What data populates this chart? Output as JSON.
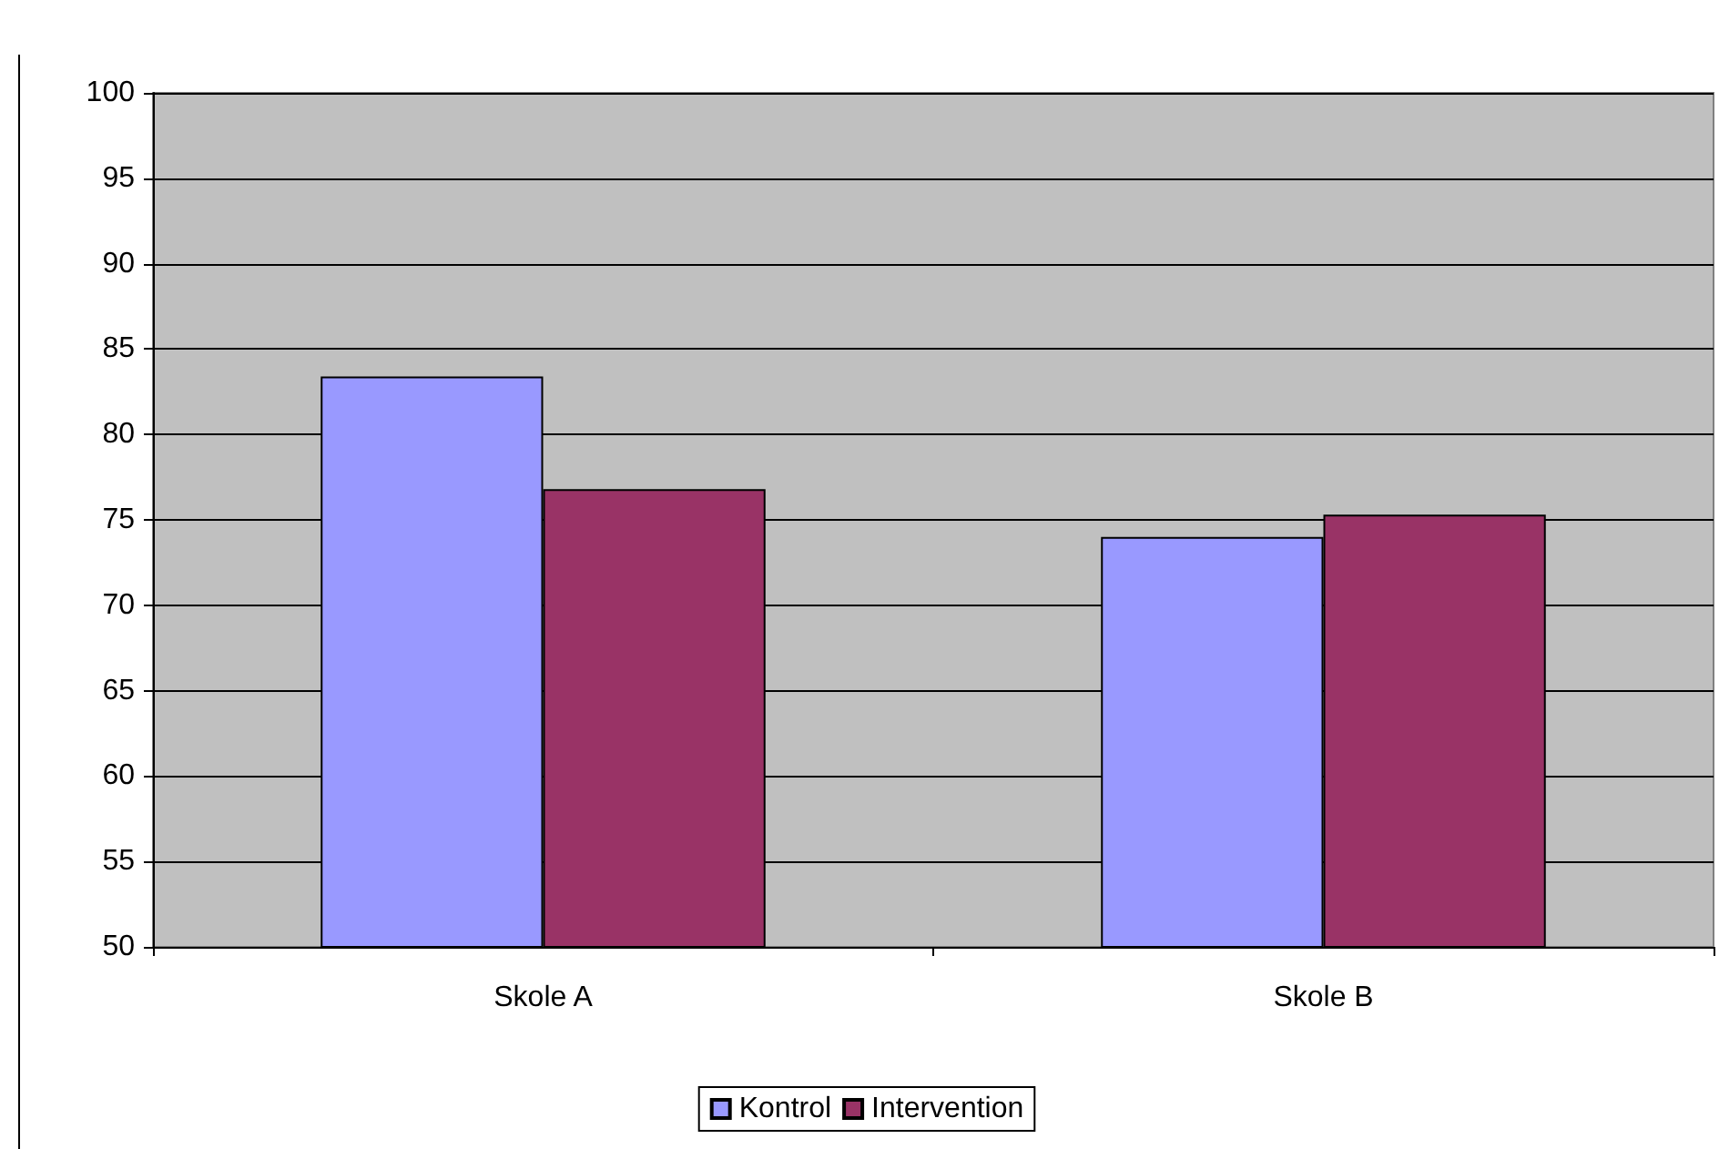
{
  "chart_data": {
    "type": "bar",
    "categories": [
      "Skole A",
      "Skole B"
    ],
    "series": [
      {
        "name": "Kontrol",
        "color": "#9999ff",
        "values": [
          83.4,
          74.0
        ]
      },
      {
        "name": "Intervention",
        "color": "#993366",
        "values": [
          76.8,
          75.3
        ]
      }
    ],
    "ylim": [
      50,
      100
    ],
    "yticks": [
      50,
      55,
      60,
      65,
      70,
      75,
      80,
      85,
      90,
      95,
      100
    ],
    "grid": "y",
    "legend": "bottom"
  }
}
